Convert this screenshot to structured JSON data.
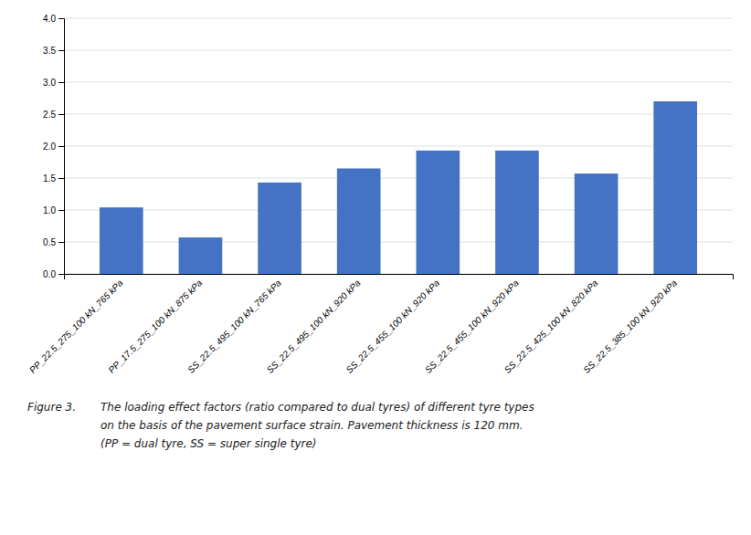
{
  "chart_data": {
    "type": "bar",
    "categories": [
      "PP_22.5_275_100 kN_765 kPa",
      "PP_17.5_275_100 kN_875 kPa",
      "SS_22.5_495_100 kN_765 kPa",
      "SS_22.5_495_100 kN_920 kPa",
      "SS_22.5_455_100 kN_920 kPa",
      "SS_22.5_455_100 kN_920 kPa",
      "SS_22.5_425_100 kN_820 kPa",
      "SS_22.5_385_100 kN_920 kPa"
    ],
    "values": [
      1.04,
      0.57,
      1.43,
      1.65,
      1.93,
      1.93,
      1.57,
      2.7
    ],
    "color": "#4472C4",
    "ylim": [
      0,
      4.0
    ],
    "yticks": [
      {
        "value": 0,
        "label": "0.0"
      },
      0.5,
      {
        "value": 1,
        "label": "1.0"
      },
      1.5,
      {
        "value": 2,
        "label": "2.0"
      },
      2.5,
      {
        "value": 3,
        "label": "3.0"
      },
      3.5,
      {
        "value": 4,
        "label": "4.0"
      }
    ],
    "grid": true,
    "annotations": [
      "Figure 3.",
      "The loading effect factors (ratio compared to dual tyres) of different tyre types",
      "on the basis of the pavement surface strain. Pavement thickness is 120 mm.",
      "(PP = dual tyre, SS = super single tyre)"
    ]
  }
}
